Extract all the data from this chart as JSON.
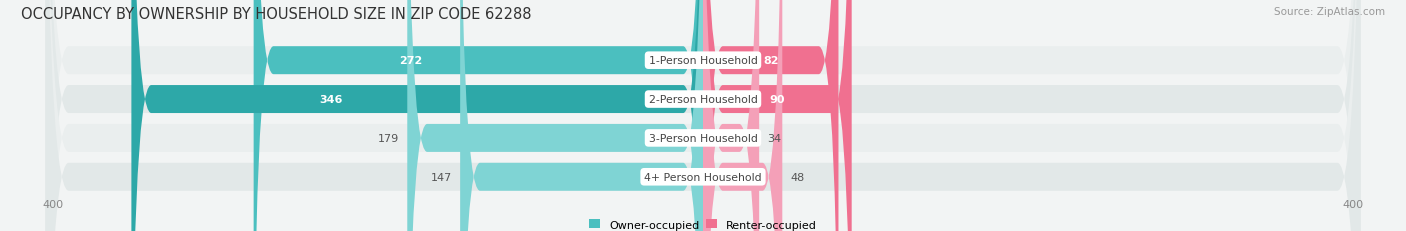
{
  "title": "OCCUPANCY BY OWNERSHIP BY HOUSEHOLD SIZE IN ZIP CODE 62288",
  "source": "Source: ZipAtlas.com",
  "categories": [
    "1-Person Household",
    "2-Person Household",
    "3-Person Household",
    "4+ Person Household"
  ],
  "owner_values": [
    272,
    346,
    179,
    147
  ],
  "renter_values": [
    82,
    90,
    34,
    48
  ],
  "owner_colors": [
    "#4BBFBF",
    "#2DA8A8",
    "#7FD4D4",
    "#7FD4D4"
  ],
  "renter_colors": [
    "#F07090",
    "#F07090",
    "#F4A0B8",
    "#F4A0B8"
  ],
  "row_bg_colors": [
    "#EAEEEE",
    "#E2E8E8",
    "#EAEEEE",
    "#E2E8E8"
  ],
  "axis_max": 400,
  "title_fontsize": 10.5,
  "source_fontsize": 7.5,
  "legend_owner": "Owner-occupied",
  "legend_renter": "Renter-occupied",
  "owner_threshold": 200,
  "renter_threshold": 70,
  "bg_color": "#F2F4F4"
}
